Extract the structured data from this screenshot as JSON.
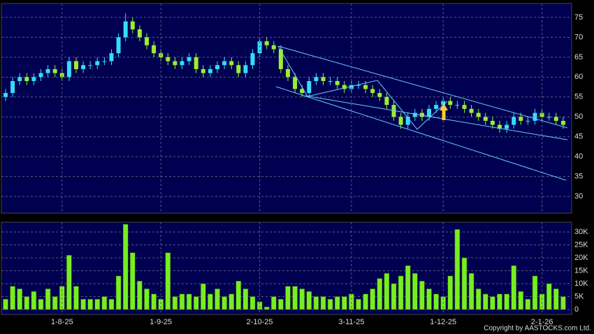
{
  "chart_data": [
    {
      "type": "candlestick",
      "up_color": "#33ddff",
      "down_color": "#99ee33",
      "grid": true,
      "open": [
        55,
        56,
        59,
        60,
        59,
        60,
        61,
        62,
        61,
        60,
        64,
        62,
        63,
        63,
        64,
        64,
        66,
        70,
        74,
        72,
        70,
        68,
        66,
        65,
        64,
        63,
        64,
        65,
        62,
        61,
        62,
        63,
        64,
        63,
        61,
        63,
        66,
        69,
        68,
        67,
        62,
        60,
        57,
        56,
        59,
        60,
        59,
        59,
        58,
        57,
        58,
        58,
        57,
        56,
        55,
        53,
        50,
        48,
        50,
        51,
        50,
        52,
        53,
        54,
        53,
        53,
        52,
        51,
        50,
        49,
        48,
        47,
        48,
        50,
        49,
        49,
        51,
        50,
        50,
        49
      ],
      "high": [
        57,
        60,
        61,
        61,
        61,
        62,
        63,
        63,
        62,
        65,
        65,
        64,
        64,
        65,
        65,
        67,
        71,
        76,
        75,
        73,
        71,
        69,
        67,
        66,
        65,
        65,
        66,
        66,
        63,
        63,
        64,
        65,
        65,
        64,
        64,
        67,
        70,
        70,
        69,
        68,
        63,
        61,
        58,
        60,
        61,
        61,
        60,
        60,
        59,
        59,
        59,
        59,
        58,
        57,
        56,
        54,
        51,
        51,
        52,
        52,
        53,
        54,
        55,
        55,
        54,
        54,
        53,
        52,
        51,
        50,
        49,
        49,
        51,
        51,
        50,
        52,
        52,
        51,
        51,
        50
      ],
      "low": [
        54,
        55,
        58,
        58,
        58,
        59,
        60,
        60,
        59,
        59,
        61,
        61,
        62,
        62,
        63,
        63,
        65,
        69,
        71,
        69,
        67,
        65,
        64,
        63,
        62,
        62,
        63,
        61,
        60,
        60,
        61,
        62,
        62,
        60,
        60,
        62,
        65,
        67,
        66,
        61,
        59,
        56,
        55,
        55,
        58,
        58,
        58,
        57,
        56,
        56,
        57,
        56,
        55,
        54,
        52,
        49,
        47,
        47,
        49,
        49,
        49,
        51,
        52,
        52,
        52,
        51,
        50,
        49,
        48,
        47,
        46,
        46,
        47,
        48,
        48,
        48,
        49,
        49,
        48,
        47
      ],
      "close": [
        56,
        59,
        60,
        59,
        60,
        61,
        62,
        61,
        60,
        64,
        62,
        63,
        63,
        64,
        64,
        66,
        70,
        74,
        72,
        70,
        68,
        66,
        65,
        64,
        63,
        64,
        65,
        62,
        61,
        62,
        63,
        64,
        63,
        61,
        63,
        66,
        69,
        68,
        67,
        62,
        60,
        57,
        56,
        59,
        60,
        59,
        59,
        58,
        57,
        58,
        58,
        57,
        56,
        55,
        53,
        50,
        48,
        50,
        51,
        50,
        52,
        53,
        54,
        53,
        53,
        52,
        51,
        50,
        49,
        48,
        47,
        48,
        50,
        49,
        49,
        51,
        50,
        50,
        49,
        48
      ],
      "ylim": [
        25.8,
        78.5
      ],
      "yticks": [
        30,
        35,
        40,
        45,
        50,
        55,
        60,
        65,
        70,
        75
      ]
    },
    {
      "type": "bar",
      "color": "#77ee22",
      "grid": true,
      "categories": [
        null,
        null,
        null,
        null,
        null,
        null,
        null,
        null,
        "1-8-25",
        null,
        null,
        null,
        null,
        null,
        null,
        null,
        null,
        null,
        null,
        null,
        null,
        null,
        "1-9-25",
        null,
        null,
        null,
        null,
        null,
        null,
        null,
        null,
        null,
        null,
        null,
        null,
        null,
        "2-10-25",
        null,
        null,
        null,
        null,
        null,
        null,
        null,
        null,
        null,
        null,
        null,
        null,
        "3-11-25",
        null,
        null,
        null,
        null,
        null,
        null,
        null,
        null,
        null,
        null,
        null,
        null,
        "1-12-25",
        null,
        null,
        null,
        null,
        null,
        null,
        null,
        null,
        null,
        null,
        null,
        null,
        null,
        "2-1-26",
        null,
        null,
        null
      ],
      "values": [
        4000,
        9000,
        8000,
        5000,
        7000,
        4000,
        8000,
        5000,
        9000,
        21000,
        9000,
        4000,
        4000,
        4000,
        5000,
        4000,
        13000,
        33000,
        22000,
        11000,
        8000,
        6000,
        4000,
        22000,
        5000,
        6000,
        6000,
        5000,
        10000,
        6000,
        8000,
        5000,
        6000,
        11000,
        8000,
        5000,
        3000,
        1000,
        5000,
        4000,
        9000,
        9000,
        8000,
        7000,
        5000,
        5000,
        4000,
        5000,
        5000,
        6000,
        4000,
        6000,
        8000,
        12000,
        14000,
        10000,
        13000,
        17000,
        14000,
        11000,
        8000,
        6000,
        5000,
        13000,
        31000,
        20000,
        14000,
        8000,
        6000,
        5000,
        6000,
        6000,
        17000,
        7000,
        4000,
        13000,
        6000,
        10000,
        8000,
        5000
      ],
      "ylim": [
        -1900,
        33800
      ],
      "yticks": [
        {
          "value": 0,
          "label": "0"
        },
        {
          "value": 5000,
          "label": "5K"
        },
        {
          "value": 10000,
          "label": "10K"
        },
        {
          "value": 15000,
          "label": "15K"
        },
        {
          "value": 20000,
          "label": "20K"
        },
        {
          "value": 25000,
          "label": "25K"
        },
        {
          "value": 30000,
          "label": "30K"
        }
      ]
    }
  ],
  "copyright": "Copyright by AASTOCKS.com Ltd."
}
